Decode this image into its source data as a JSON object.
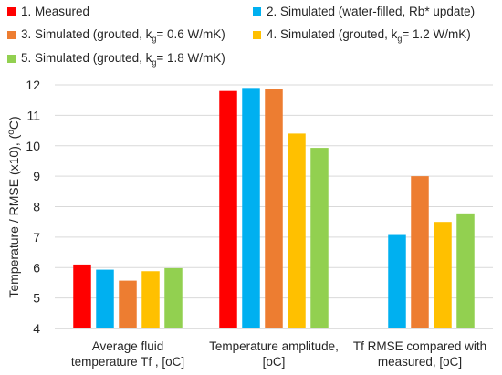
{
  "chart_data": {
    "type": "bar",
    "categories": [
      [
        "Average fluid",
        "temperature Tf , [oC]"
      ],
      [
        "Temperature amplitude,",
        "[oC]"
      ],
      [
        "Tf RMSE compared with",
        "measured, [oC]"
      ]
    ],
    "series": [
      {
        "name": "1. Measured",
        "color": "#ff0000",
        "values": [
          6.1,
          11.8,
          null
        ]
      },
      {
        "name": "2. Simulated (water-filled, Rb* update)",
        "color": "#00b0f0",
        "values": [
          5.93,
          11.9,
          7.07
        ]
      },
      {
        "name": "3. Simulated (grouted, kg= 0.6 W/mK)",
        "color": "#ed7d31",
        "values": [
          5.57,
          11.87,
          9.0
        ]
      },
      {
        "name": "4. Simulated (grouted, kg= 1.2 W/mK)",
        "color": "#ffc000",
        "values": [
          5.88,
          10.4,
          7.5
        ]
      },
      {
        "name": "5. Simulated (grouted, kg= 1.8 W/mK)",
        "color": "#92d050",
        "values": [
          5.98,
          9.93,
          7.78
        ]
      }
    ],
    "legend_labels": [
      {
        "pre": "1. Measured",
        "sub": "",
        "post": ""
      },
      {
        "pre": "2. Simulated (water-filled, Rb* update)",
        "sub": "",
        "post": ""
      },
      {
        "pre": "3. Simulated (grouted, k",
        "sub": "g",
        "post": "= 0.6 W/mK)"
      },
      {
        "pre": "4. Simulated (grouted, k",
        "sub": "g",
        "post": "= 1.2 W/mK)"
      },
      {
        "pre": "5. Simulated (grouted, k",
        "sub": "g",
        "post": "= 1.8 W/mK)"
      }
    ],
    "ylabel": "Temperature  / RMSE (x10), (oC)",
    "ylim": [
      4,
      12
    ],
    "yticks": [
      4,
      5,
      6,
      7,
      8,
      9,
      10,
      11,
      12
    ],
    "grid": true,
    "legend_position": "top"
  }
}
